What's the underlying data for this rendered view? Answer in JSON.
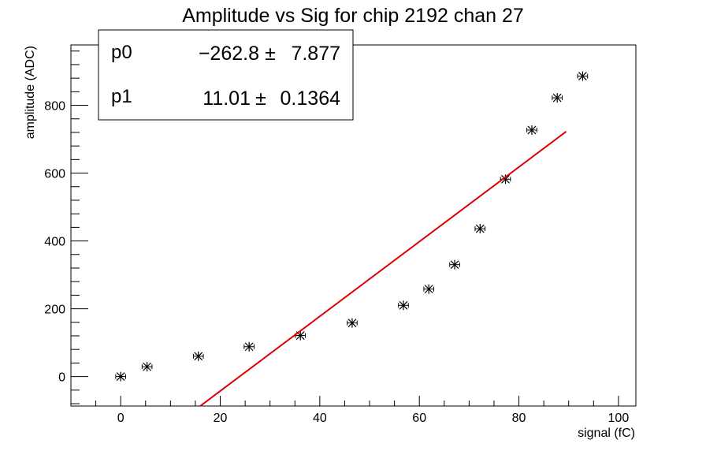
{
  "chart_data": {
    "type": "scatter",
    "title": "Amplitude vs Sig for chip 2192 chan 27",
    "xlabel": "signal (fC)",
    "ylabel": "amplitude (ADC)",
    "xlim": [
      -10,
      103.5
    ],
    "ylim": [
      -87,
      978
    ],
    "x_ticks": [
      0,
      20,
      40,
      60,
      80,
      100
    ],
    "y_ticks": [
      0,
      200,
      400,
      600,
      800
    ],
    "grid": false,
    "marker": "asterisk",
    "x_error_half_width": 1.0,
    "points": [
      {
        "x": 0,
        "y": 0
      },
      {
        "x": 5.3,
        "y": 29
      },
      {
        "x": 15.6,
        "y": 60
      },
      {
        "x": 25.8,
        "y": 88
      },
      {
        "x": 36.1,
        "y": 121
      },
      {
        "x": 46.5,
        "y": 158
      },
      {
        "x": 56.8,
        "y": 210
      },
      {
        "x": 61.9,
        "y": 258
      },
      {
        "x": 67.1,
        "y": 330
      },
      {
        "x": 72.2,
        "y": 436
      },
      {
        "x": 77.3,
        "y": 582
      },
      {
        "x": 82.6,
        "y": 727
      },
      {
        "x": 87.7,
        "y": 822
      },
      {
        "x": 92.8,
        "y": 886
      }
    ],
    "fit": {
      "type": "linear",
      "color": "#e00000",
      "x_start": 15.95,
      "x_end": 89.5,
      "p0": -262.8,
      "p1": 11.01
    },
    "stats": {
      "placement": "top-left",
      "rows": [
        {
          "name": "p0",
          "value": "−262.8",
          "pm": "±",
          "error": "7.877"
        },
        {
          "name": "p1",
          "value": "11.01",
          "pm": "±",
          "error": "0.1364"
        }
      ]
    }
  }
}
